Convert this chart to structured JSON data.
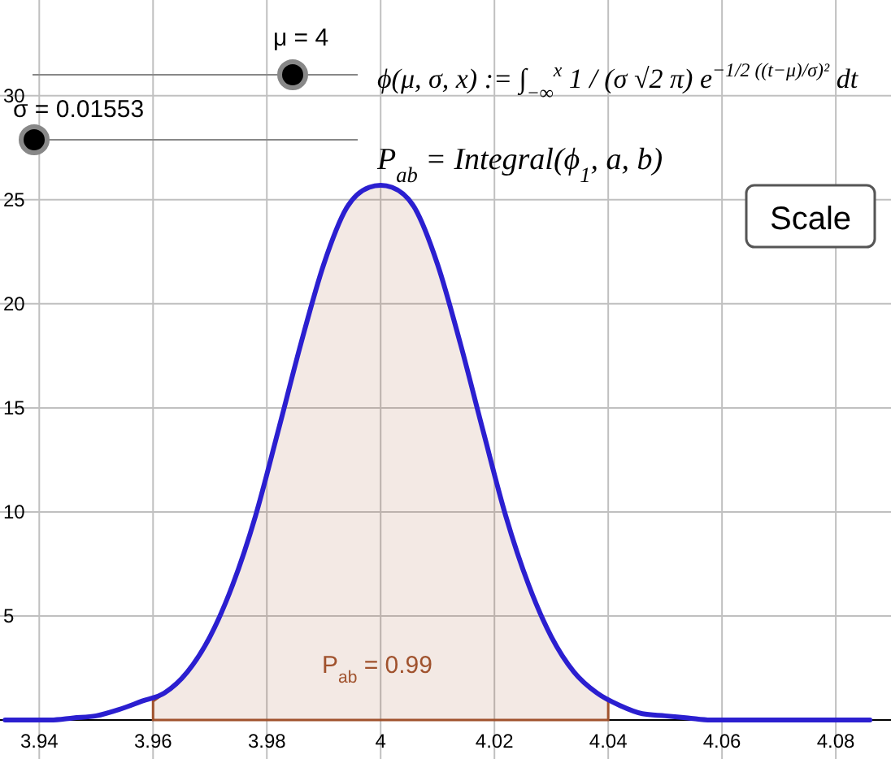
{
  "chart_data": {
    "type": "line",
    "x": [
      3.934,
      3.938,
      3.942,
      3.946,
      3.95,
      3.954,
      3.958,
      3.962,
      3.966,
      3.97,
      3.974,
      3.978,
      3.982,
      3.986,
      3.99,
      3.994,
      3.998,
      4,
      4.002,
      4.006,
      4.01,
      4.014,
      4.018,
      4.022,
      4.026,
      4.03,
      4.034,
      4.038,
      4.042,
      4.046,
      4.05,
      4.054,
      4.058,
      4.062,
      4.066,
      4.07,
      4.074,
      4.078,
      4.082,
      4.086
    ],
    "series": [
      {
        "type": "area",
        "color": "#a0522d",
        "x": [
          3.96,
          3.962,
          3.966,
          3.97,
          3.974,
          3.978,
          3.982,
          3.986,
          3.99,
          3.994,
          3.998,
          4,
          4.002,
          4.006,
          4.01,
          4.014,
          4.018,
          4.022,
          4.026,
          4.03,
          4.034,
          4.038,
          4.04
        ],
        "values": [
          0.9,
          1.3,
          2.3,
          4.0,
          6.5,
          9.8,
          13.9,
          18.1,
          21.9,
          24.6,
          25.6,
          25.7,
          25.6,
          24.6,
          21.9,
          18.1,
          13.9,
          9.8,
          6.5,
          4.0,
          2.3,
          1.3,
          0.9
        ]
      },
      {
        "type": "line",
        "color": "#2b1fd0",
        "values": [
          0,
          0,
          0,
          0.1,
          0.2,
          0.5,
          0.9,
          1.3,
          2.3,
          4.0,
          6.5,
          9.8,
          13.9,
          18.1,
          21.9,
          24.6,
          25.6,
          25.7,
          25.6,
          24.6,
          21.9,
          18.1,
          13.9,
          9.8,
          6.5,
          4.0,
          2.3,
          1.3,
          0.7,
          0.3,
          0.2,
          0.1,
          0,
          0,
          0,
          0,
          0,
          0,
          0,
          0
        ]
      }
    ],
    "xlim": [
      3.9331,
      4.0897
    ],
    "ylim": [
      -1.875,
      34.6
    ],
    "xticks": [
      3.94,
      3.96,
      3.98,
      4,
      4.02,
      4.04,
      4.06,
      4.08
    ],
    "yticks": [
      5,
      10,
      15,
      20,
      25,
      30
    ],
    "grid": true,
    "annotations": [
      "μ = 4",
      "σ = 0.01553",
      "ϕ(μ, σ, x) := ∫$_{−∞}$$^{x}$ 1 / (σ √2 π) e$^{−1/2 ((t−μ)/σ)²}$ dt",
      "P$_{ab}$ = Integral(ϕ$_{1}$, a, b)",
      "Scale",
      "P$_{ab}$ = 0.99"
    ]
  }
}
